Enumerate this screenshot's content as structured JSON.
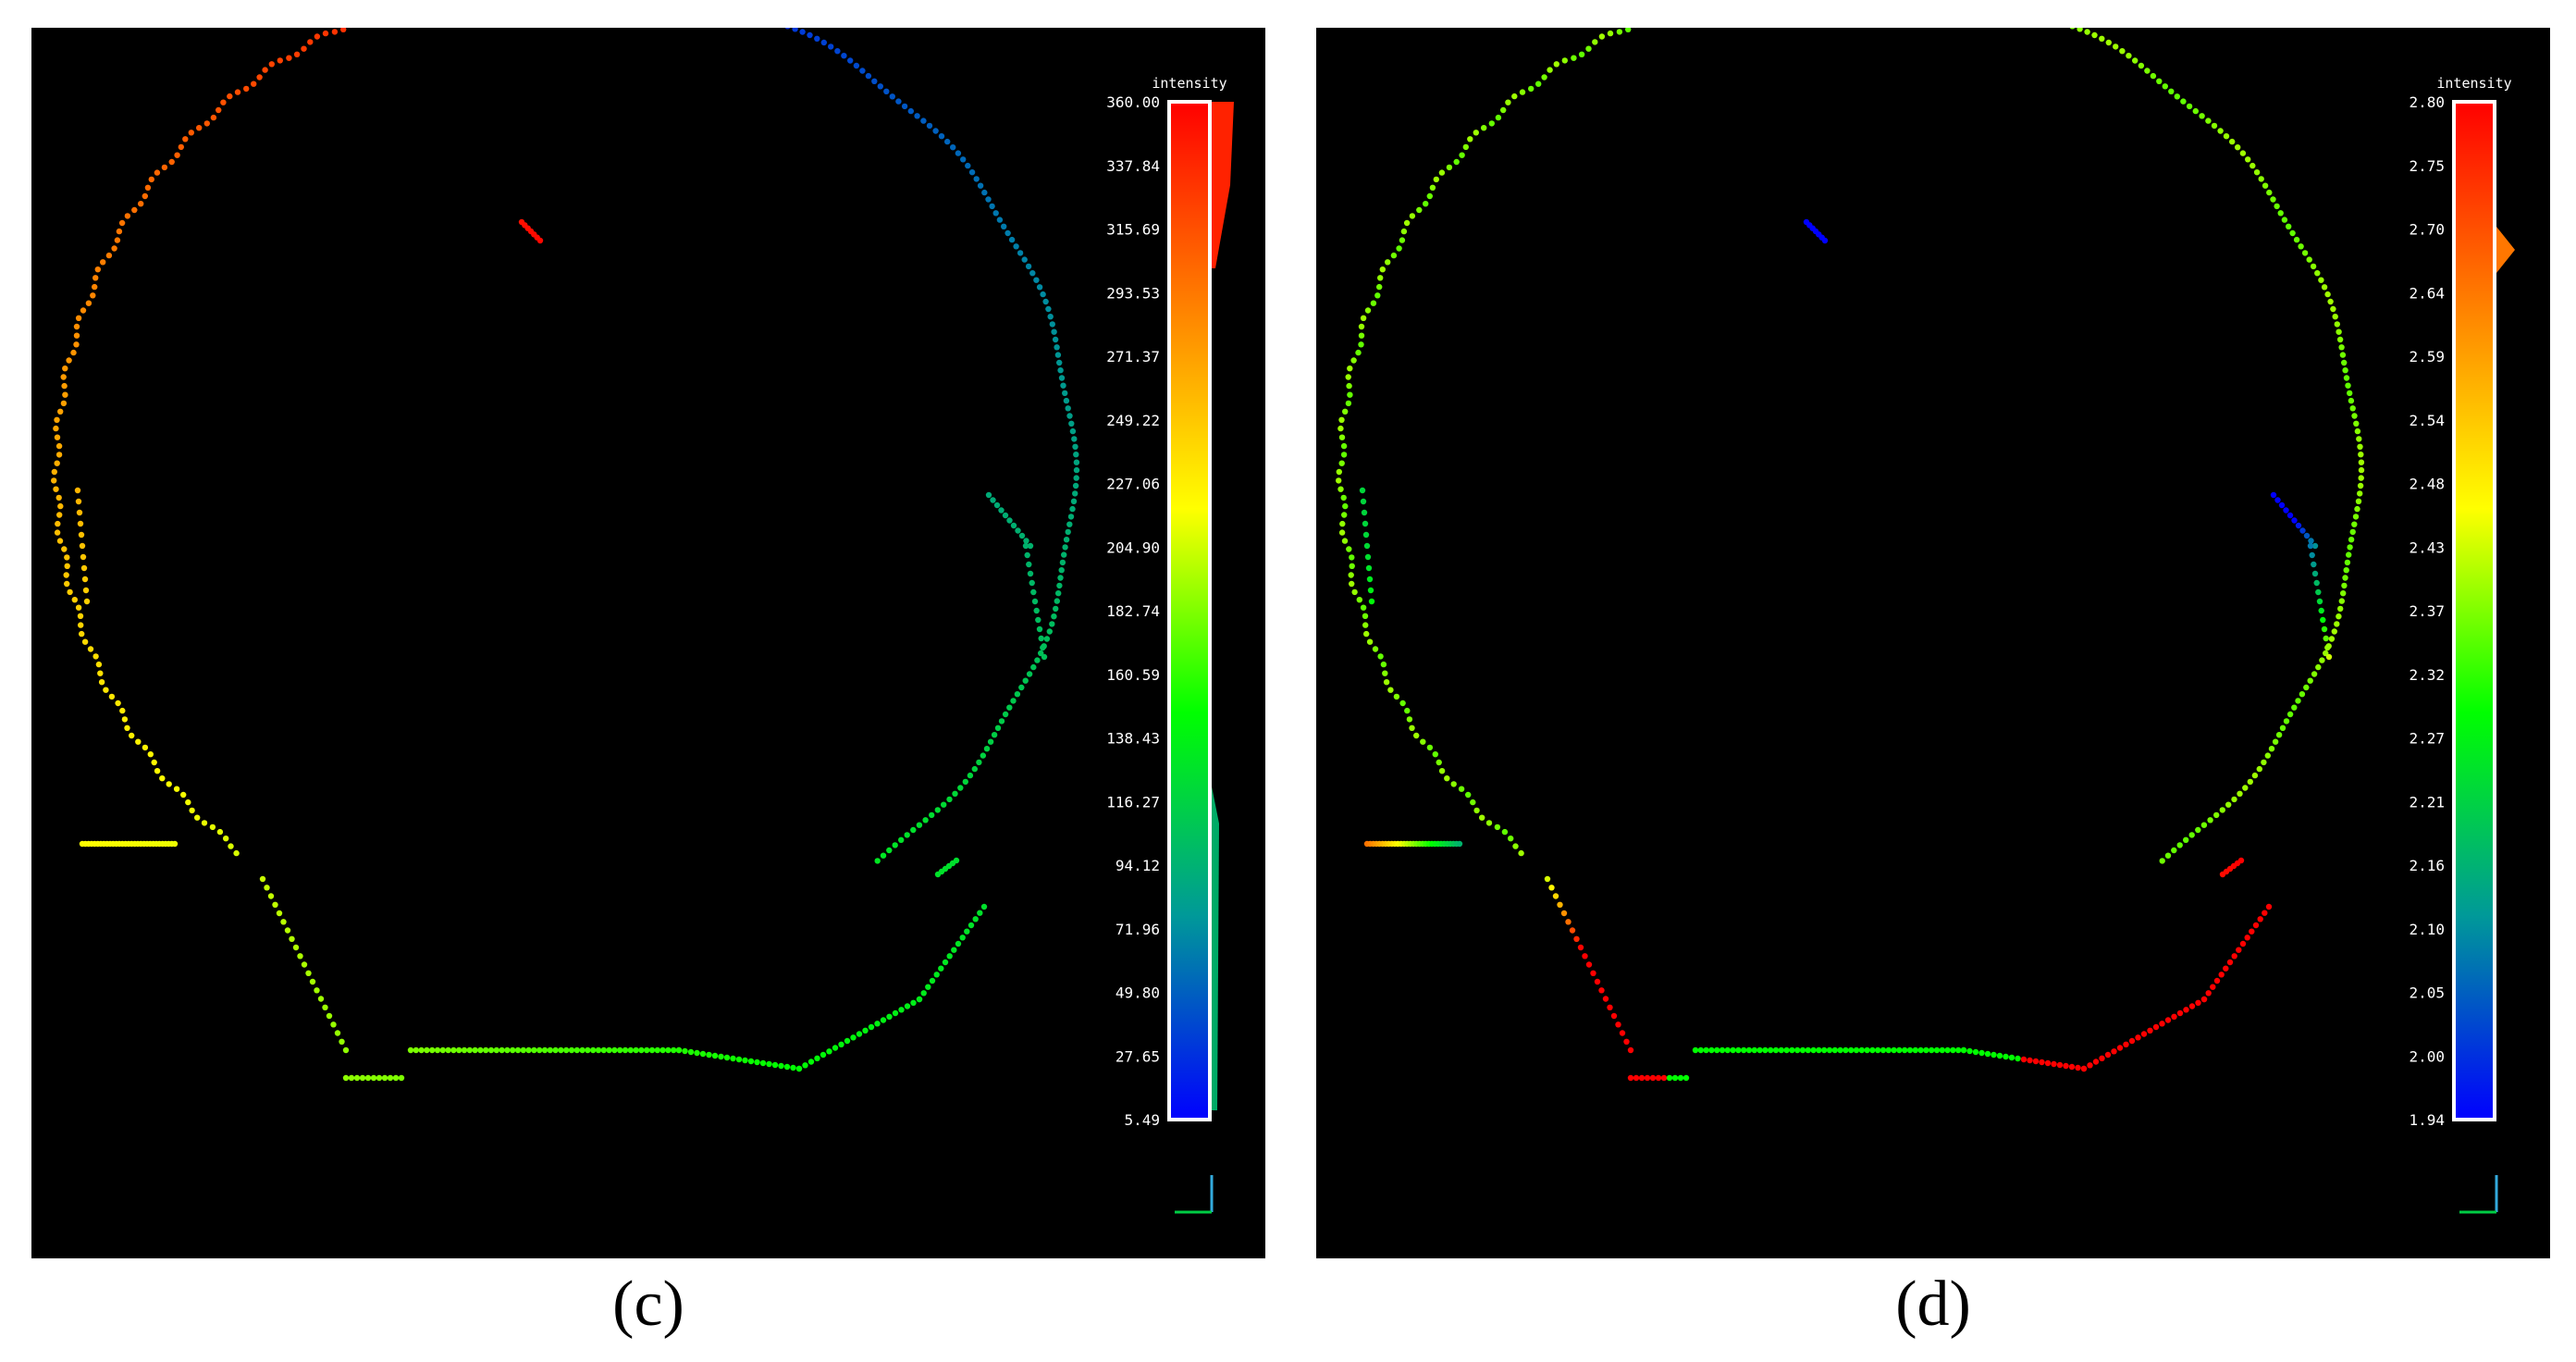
{
  "panels": [
    {
      "id": "c",
      "caption": "(c)",
      "scale_title": "intensity",
      "scale_min": 5.49,
      "scale_max": 360.0,
      "scale_ticks": [
        "360.00",
        "337.84",
        "315.69",
        "293.53",
        "271.37",
        "249.22",
        "227.06",
        "204.90",
        "182.74",
        "160.59",
        "138.43",
        "116.27",
        "94.12",
        "71.96",
        "49.80",
        "27.65",
        "5.49"
      ],
      "coloring": "angle"
    },
    {
      "id": "d",
      "caption": "(d)",
      "scale_title": "intensity",
      "scale_min": 1.94,
      "scale_max": 2.8,
      "scale_ticks": [
        "2.80",
        "2.75",
        "2.70",
        "2.64",
        "2.59",
        "2.54",
        "2.48",
        "2.43",
        "2.37",
        "2.32",
        "2.27",
        "2.21",
        "2.16",
        "2.10",
        "2.05",
        "2.00",
        "1.94"
      ],
      "coloring": "radius"
    }
  ],
  "colors": {
    "background": "#000000",
    "axis_x": "#00cc44",
    "axis_y": "#33aadd",
    "ramp": [
      "#ff0000",
      "#ff8000",
      "#ffff00",
      "#00ff00",
      "#009999",
      "#0000ff"
    ]
  }
}
